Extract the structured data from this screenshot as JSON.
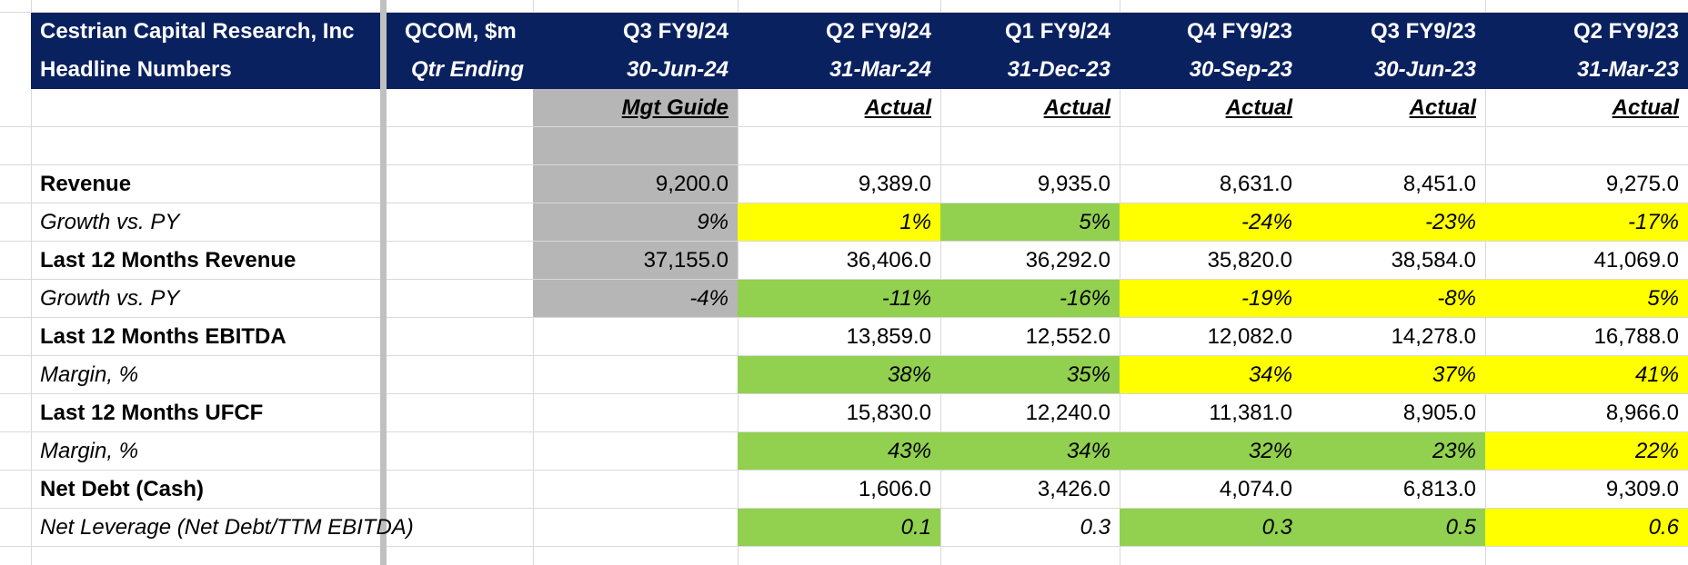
{
  "header": {
    "company": "Cestrian Capital Research, Inc",
    "subtitle": "Headline Numbers",
    "ticker": "QCOM, $m",
    "qtr_ending_label": "Qtr Ending",
    "columns": [
      {
        "quarter": "Q3 FY9/24",
        "date": "30-Jun-24",
        "basis": "Mgt Guide"
      },
      {
        "quarter": "Q2 FY9/24",
        "date": "31-Mar-24",
        "basis": "Actual"
      },
      {
        "quarter": "Q1 FY9/24",
        "date": "31-Dec-23",
        "basis": "Actual"
      },
      {
        "quarter": "Q4 FY9/23",
        "date": "30-Sep-23",
        "basis": "Actual"
      },
      {
        "quarter": "Q3 FY9/23",
        "date": "30-Jun-23",
        "basis": "Actual"
      },
      {
        "quarter": "Q2 FY9/23",
        "date": "31-Mar-23",
        "basis": "Actual"
      }
    ]
  },
  "rows": [
    {
      "label": "Revenue",
      "style": "bold",
      "values": [
        "9,200.0",
        "9,389.0",
        "9,935.0",
        "8,631.0",
        "8,451.0",
        "9,275.0"
      ],
      "fills": [
        "grey",
        "",
        "",
        "",
        "",
        ""
      ]
    },
    {
      "label": "Growth vs. PY",
      "style": "italic",
      "values": [
        "9%",
        "1%",
        "5%",
        "-24%",
        "-23%",
        "-17%"
      ],
      "fills": [
        "grey",
        "yellow",
        "green",
        "yellow",
        "yellow",
        "yellow"
      ]
    },
    {
      "label": "Last 12 Months Revenue",
      "style": "bold",
      "values": [
        "37,155.0",
        "36,406.0",
        "36,292.0",
        "35,820.0",
        "38,584.0",
        "41,069.0"
      ],
      "fills": [
        "grey",
        "",
        "",
        "",
        "",
        ""
      ]
    },
    {
      "label": "Growth vs. PY",
      "style": "italic",
      "values": [
        "-4%",
        "-11%",
        "-16%",
        "-19%",
        "-8%",
        "5%"
      ],
      "fills": [
        "grey",
        "green",
        "green",
        "yellow",
        "yellow",
        "yellow"
      ]
    },
    {
      "label": "Last 12 Months EBITDA",
      "style": "bold",
      "values": [
        "",
        "13,859.0",
        "12,552.0",
        "12,082.0",
        "14,278.0",
        "16,788.0"
      ],
      "fills": [
        "",
        "",
        "",
        "",
        "",
        ""
      ]
    },
    {
      "label": "Margin, %",
      "style": "italic",
      "values": [
        "",
        "38%",
        "35%",
        "34%",
        "37%",
        "41%"
      ],
      "fills": [
        "",
        "green",
        "green",
        "yellow",
        "yellow",
        "yellow"
      ]
    },
    {
      "label": "Last 12 Months UFCF",
      "style": "bold",
      "values": [
        "",
        "15,830.0",
        "12,240.0",
        "11,381.0",
        "8,905.0",
        "8,966.0"
      ],
      "fills": [
        "",
        "",
        "",
        "",
        "",
        ""
      ]
    },
    {
      "label": "Margin, %",
      "style": "italic",
      "values": [
        "",
        "43%",
        "34%",
        "32%",
        "23%",
        "22%"
      ],
      "fills": [
        "",
        "green",
        "green",
        "green",
        "green",
        "yellow"
      ]
    },
    {
      "label": "Net Debt (Cash)",
      "style": "bold",
      "values": [
        "",
        "1,606.0",
        "3,426.0",
        "4,074.0",
        "6,813.0",
        "9,309.0"
      ],
      "fills": [
        "",
        "",
        "",
        "",
        "",
        ""
      ]
    },
    {
      "label": "Net Leverage (Net Debt/TTM EBITDA)",
      "style": "italic",
      "values": [
        "",
        "0.1",
        "0.3",
        "0.3",
        "0.5",
        "0.6"
      ],
      "fills": [
        "",
        "green",
        "",
        "green",
        "green",
        "yellow"
      ]
    }
  ],
  "colors": {
    "header_bg": "#0a2160",
    "guide_bg": "#b6b6b6",
    "yellow": "#ffff00",
    "green": "#92d050"
  }
}
